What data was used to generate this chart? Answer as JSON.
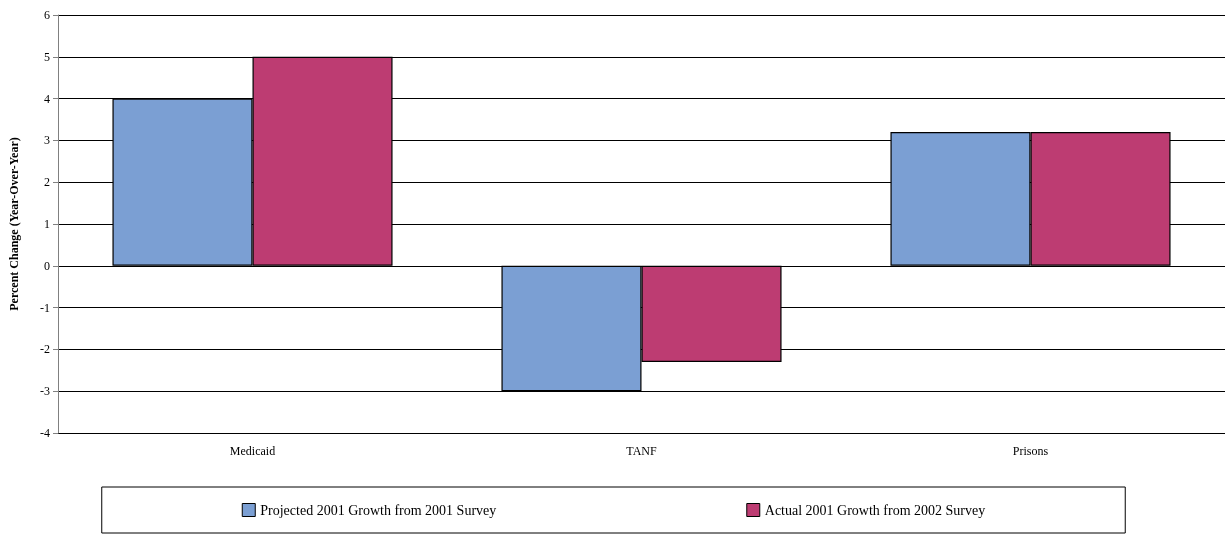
{
  "chart_data": {
    "type": "bar",
    "ylabel": "Percent Change (Year-Over-Year)",
    "categories": [
      "Medicaid",
      "TANF",
      "Prisons"
    ],
    "series": [
      {
        "name": "Projected 2001 Growth from 2001 Survey",
        "color": "#7b9fd3",
        "values": [
          4,
          -3,
          3.2
        ]
      },
      {
        "name": "Actual 2001 Growth from 2002 Survey",
        "color": "#bd3c72",
        "values": [
          5,
          -2.3,
          3.2
        ]
      }
    ],
    "ylim": [
      -4,
      6
    ],
    "yticks": [
      -4,
      -3,
      -2,
      -1,
      0,
      1,
      2,
      3,
      4,
      5,
      6
    ],
    "grid": "y",
    "legend": "bottom"
  }
}
